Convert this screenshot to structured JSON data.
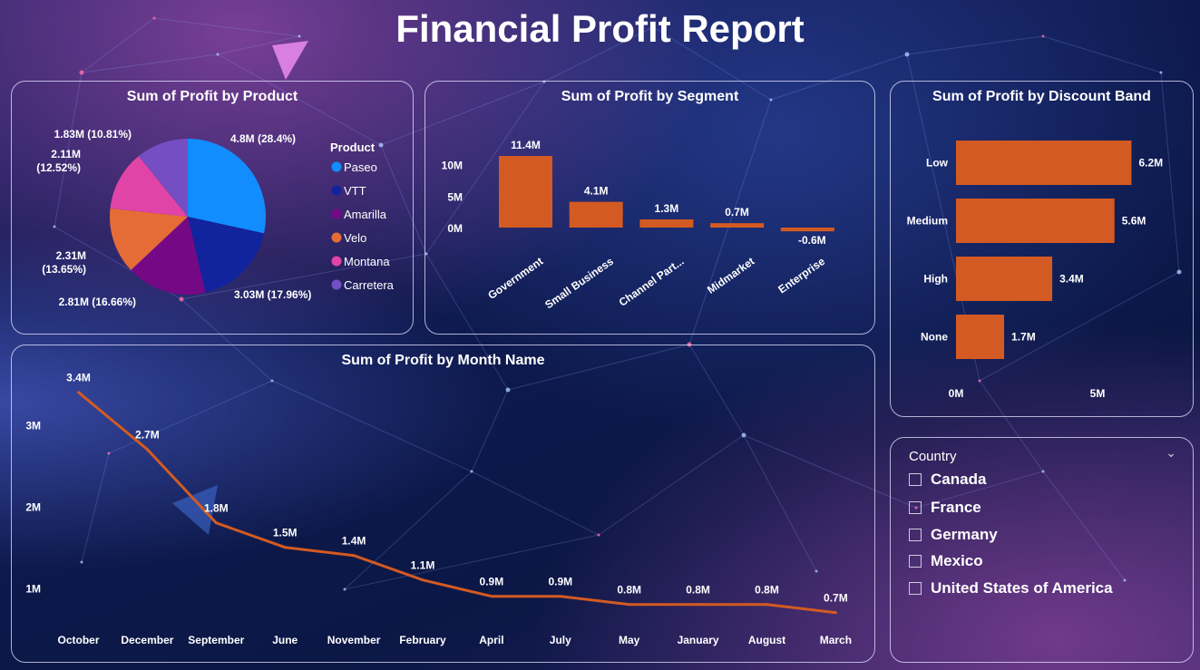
{
  "title": "Financial Profit Report",
  "colors": {
    "bar": "#d35a22",
    "line": "#d35a22"
  },
  "product_card": {
    "title": "Sum of Profit by Product"
  },
  "segment_card": {
    "title": "Sum of Profit by Segment"
  },
  "discount_card": {
    "title": "Sum of Profit by Discount Band"
  },
  "month_card": {
    "title": "Sum of Profit by Month Name"
  },
  "slicer": {
    "title": "Country",
    "options": [
      "Canada",
      "France",
      "Germany",
      "Mexico",
      "United States of America"
    ]
  },
  "chart_data": [
    {
      "type": "pie",
      "title": "Sum of Profit by Product",
      "legend_title": "Product",
      "legend_position": "right",
      "categories": [
        "Paseo",
        "VTT",
        "Amarilla",
        "Velo",
        "Montana",
        "Carretera"
      ],
      "values": [
        4.8,
        3.03,
        2.81,
        2.31,
        2.11,
        1.83
      ],
      "percent_labels": [
        "4.8M (28.4%)",
        "3.03M (17.96%)",
        "2.81M (16.66%)",
        "2.31M (13.65%)",
        "2.11M (12.52%)",
        "1.83M (10.81%)"
      ],
      "colors": [
        "#118dff",
        "#12239e",
        "#750985",
        "#e66c37",
        "#e044a7",
        "#744ec2"
      ]
    },
    {
      "type": "bar",
      "title": "Sum of Profit by Segment",
      "categories": [
        "Government",
        "Small Business",
        "Channel Part...",
        "Midmarket",
        "Enterprise"
      ],
      "values": [
        11.4,
        4.1,
        1.3,
        0.7,
        -0.6
      ],
      "data_labels": [
        "11.4M",
        "4.1M",
        "1.3M",
        "0.7M",
        "-0.6M"
      ],
      "yticks": [
        "0M",
        "5M",
        "10M"
      ],
      "ylim": [
        -1,
        13
      ]
    },
    {
      "type": "bar",
      "orientation": "horizontal",
      "title": "Sum of Profit by Discount Band",
      "categories": [
        "Low",
        "Medium",
        "High",
        "None"
      ],
      "values": [
        6.2,
        5.6,
        3.4,
        1.7
      ],
      "data_labels": [
        "6.2M",
        "5.6M",
        "3.4M",
        "1.7M"
      ],
      "xticks": [
        "0M",
        "5M"
      ],
      "xlim": [
        0,
        6.2
      ]
    },
    {
      "type": "line",
      "title": "Sum of Profit by Month Name",
      "categories": [
        "October",
        "December",
        "September",
        "June",
        "November",
        "February",
        "April",
        "July",
        "May",
        "January",
        "August",
        "March"
      ],
      "values": [
        3.4,
        2.7,
        1.8,
        1.5,
        1.4,
        1.1,
        0.9,
        0.9,
        0.8,
        0.8,
        0.8,
        0.7
      ],
      "data_labels": [
        "3.4M",
        "2.7M",
        "1.8M",
        "1.5M",
        "1.4M",
        "1.1M",
        "0.9M",
        "0.9M",
        "0.8M",
        "0.8M",
        "0.8M",
        "0.7M"
      ],
      "yticks": [
        "1M",
        "2M",
        "3M"
      ],
      "ylim": [
        0.5,
        3.6
      ]
    }
  ]
}
